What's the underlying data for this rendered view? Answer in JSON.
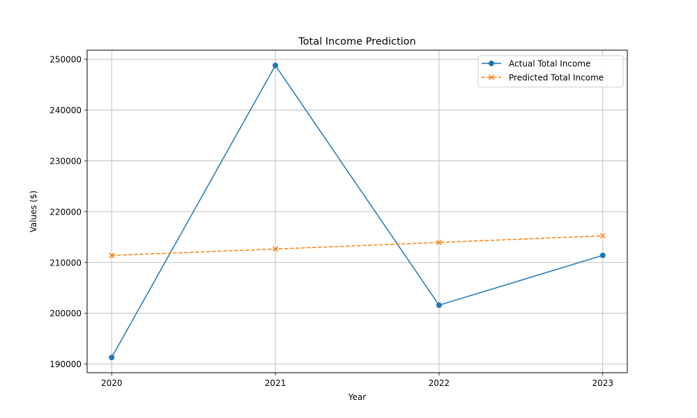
{
  "chart_data": {
    "type": "line",
    "title": "Total Income Prediction",
    "xlabel": "Year",
    "ylabel": "Values ($)",
    "categories": [
      "2020",
      "2021",
      "2022",
      "2023"
    ],
    "x": [
      2020,
      2021,
      2022,
      2023
    ],
    "xlim": [
      2019.85,
      2023.15
    ],
    "ylim": [
      188300,
      251800
    ],
    "yticks": [
      190000,
      200000,
      210000,
      220000,
      230000,
      240000,
      250000
    ],
    "yticklabels": [
      "190000",
      "200000",
      "210000",
      "220000",
      "230000",
      "240000",
      "250000"
    ],
    "grid": true,
    "legend_position": "top-right",
    "series": [
      {
        "name": "Actual Total Income",
        "values": [
          191300,
          248800,
          201600,
          211400
        ],
        "color": "#1f77b4",
        "line_style": "solid",
        "marker": "circle"
      },
      {
        "name": "Predicted Total Income",
        "values": [
          211400,
          212650,
          213950,
          215250
        ],
        "color": "#ff7f0e",
        "line_style": "dashed",
        "marker": "x"
      }
    ]
  }
}
